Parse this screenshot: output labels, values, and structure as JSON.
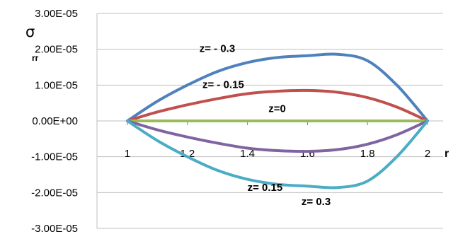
{
  "chart_data": {
    "type": "line",
    "title": "",
    "xlabel": "r",
    "ylabel": "σ",
    "ylabel_subscript": "rr",
    "xlim": [
      1,
      2
    ],
    "ylim": [
      -3e-05,
      3e-05
    ],
    "y_ticks": [
      3e-05,
      2e-05,
      1e-05,
      0,
      -1e-05,
      -2e-05,
      -3e-05
    ],
    "y_tick_labels": [
      "3.00E-05",
      "2.00E-05",
      "1.00E-05",
      "0.00E+00",
      "-1.00E-05",
      "-2.00E-05",
      "-3.00E-05"
    ],
    "x_ticks": [
      1,
      1.2,
      1.4,
      1.6,
      1.8,
      2
    ],
    "x_tick_labels": [
      "1",
      "1.2",
      "1.4",
      "1.6",
      "1.8",
      "2"
    ],
    "grid": "horizontal",
    "legend": "none",
    "series": [
      {
        "color": "#4f81bd",
        "x": [
          1,
          1.1,
          1.2,
          1.3,
          1.4,
          1.5,
          1.6,
          1.7,
          1.8,
          1.9,
          2
        ],
        "y": [
          0,
          5.5e-06,
          1e-05,
          1.38e-05,
          1.63e-05,
          1.77e-05,
          1.82e-05,
          1.86e-05,
          1.68e-05,
          9.8e-06,
          0
        ]
      },
      {
        "color": "#c0504d",
        "x": [
          1,
          1.1,
          1.2,
          1.3,
          1.4,
          1.5,
          1.6,
          1.7,
          1.8,
          1.9,
          2
        ],
        "y": [
          0,
          2.5e-06,
          4.5e-06,
          6.2e-06,
          7.6e-06,
          8.3e-06,
          8.5e-06,
          8e-06,
          6.5e-06,
          3.8e-06,
          0
        ]
      },
      {
        "color": "#9bbb59",
        "x": [
          1,
          2
        ],
        "y": [
          0,
          0
        ]
      },
      {
        "color": "#8064a2",
        "x": [
          1,
          1.1,
          1.2,
          1.3,
          1.4,
          1.5,
          1.6,
          1.7,
          1.8,
          1.9,
          2
        ],
        "y": [
          0,
          -2.5e-06,
          -4.5e-06,
          -6.2e-06,
          -7.6e-06,
          -8.3e-06,
          -8.5e-06,
          -8e-06,
          -6.5e-06,
          -3.8e-06,
          0
        ]
      },
      {
        "color": "#4bacc6",
        "x": [
          1,
          1.1,
          1.2,
          1.3,
          1.4,
          1.5,
          1.6,
          1.7,
          1.8,
          1.9,
          2
        ],
        "y": [
          0,
          -5.5e-06,
          -1e-05,
          -1.38e-05,
          -1.63e-05,
          -1.77e-05,
          -1.82e-05,
          -1.86e-05,
          -1.68e-05,
          -9.8e-06,
          0
        ]
      }
    ],
    "annotations": [
      {
        "text": "z= - 0.3",
        "x": 1.24,
        "y": 1.92e-05
      },
      {
        "text": "z=  - 0.15",
        "x": 1.25,
        "y": 9.2e-06
      },
      {
        "text": "z=0",
        "x": 1.47,
        "y": 2.5e-06
      },
      {
        "text": "z= 0.15",
        "x": 1.4,
        "y": -1.95e-05
      },
      {
        "text": "z= 0.3",
        "x": 1.58,
        "y": -2.35e-05
      }
    ]
  }
}
